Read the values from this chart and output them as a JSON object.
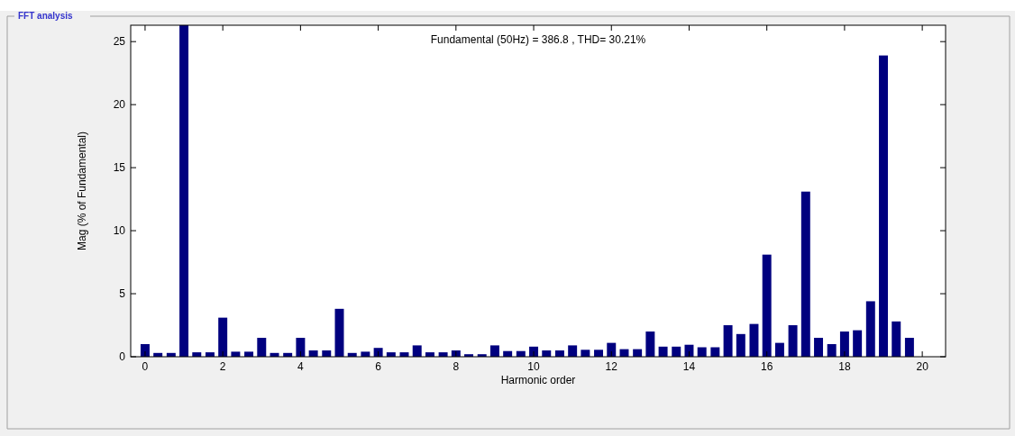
{
  "chart_data": {
    "type": "bar",
    "title": "FFT analysis",
    "xlabel": "Harmonic order",
    "ylabel": "Mag (% of Fundamental)",
    "annotations": [
      "Fundamental (50Hz) = 386.8 , THD= 30.21%"
    ],
    "x": [
      0,
      0.33,
      0.67,
      1,
      1.33,
      1.67,
      2,
      2.33,
      2.67,
      3,
      3.33,
      3.67,
      4,
      4.33,
      4.67,
      5,
      5.33,
      5.67,
      6,
      6.33,
      6.67,
      7,
      7.33,
      7.67,
      8,
      8.33,
      8.67,
      9,
      9.33,
      9.67,
      10,
      10.33,
      10.67,
      11,
      11.33,
      11.67,
      12,
      12.33,
      12.67,
      13,
      13.33,
      13.67,
      14,
      14.33,
      14.67,
      15,
      15.33,
      15.67,
      16,
      16.33,
      16.67,
      17,
      17.33,
      17.67,
      18,
      18.33,
      18.67,
      19,
      19.33,
      19.67
    ],
    "values": [
      1.0,
      0.3,
      0.3,
      26.3,
      0.35,
      0.35,
      3.1,
      0.4,
      0.4,
      1.5,
      0.3,
      0.3,
      1.5,
      0.5,
      0.5,
      3.8,
      0.3,
      0.4,
      0.7,
      0.35,
      0.35,
      0.9,
      0.35,
      0.35,
      0.5,
      0.2,
      0.2,
      0.9,
      0.45,
      0.45,
      0.8,
      0.5,
      0.5,
      0.9,
      0.55,
      0.55,
      1.1,
      0.6,
      0.6,
      2.0,
      0.8,
      0.8,
      0.95,
      0.75,
      0.75,
      2.5,
      1.8,
      2.6,
      8.1,
      1.1,
      2.5,
      13.1,
      1.5,
      1.0,
      2.0,
      2.1,
      4.4,
      23.9,
      2.8,
      1.5
    ],
    "color": "#00007f",
    "xlim": [
      -0.37,
      20.6
    ],
    "ylim": [
      0,
      26.3
    ],
    "xticks": [
      0,
      2,
      4,
      6,
      8,
      10,
      12,
      14,
      16,
      18,
      20
    ],
    "yticks": [
      0,
      5,
      10,
      15,
      20,
      25
    ],
    "grid": false
  }
}
